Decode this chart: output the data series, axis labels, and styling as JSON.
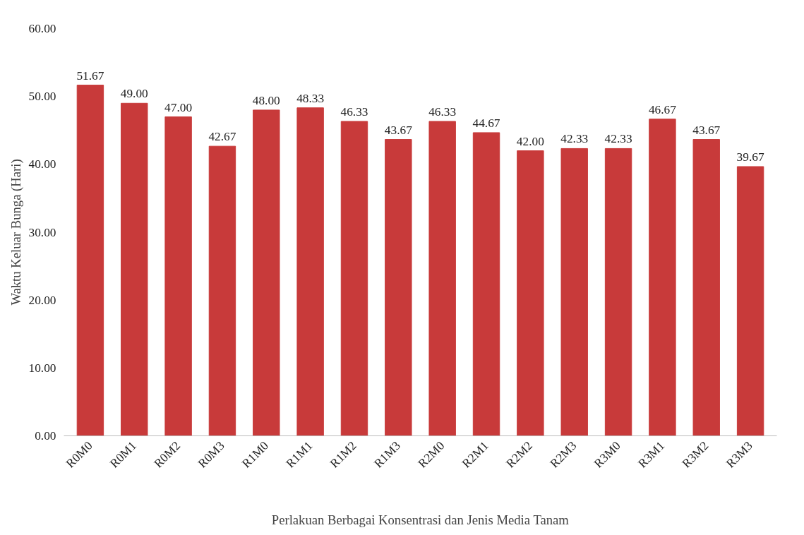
{
  "chart_data": {
    "type": "bar",
    "xlabel": "Perlakuan Berbagai Konsentrasi dan Jenis Media Tanam",
    "ylabel": "Waktu Keluar Bunga (Hari)",
    "categories": [
      "R0M0",
      "R0M1",
      "R0M2",
      "R0M3",
      "R1M0",
      "R1M1",
      "R1M2",
      "R1M3",
      "R2M0",
      "R2M1",
      "R2M2",
      "R2M3",
      "R3M0",
      "R3M1",
      "R3M2",
      "R3M3"
    ],
    "values": [
      51.67,
      49.0,
      47.0,
      42.67,
      48.0,
      48.33,
      46.33,
      43.67,
      46.33,
      44.67,
      42.0,
      42.33,
      42.33,
      46.67,
      43.67,
      39.67
    ],
    "color": "#c83a3a",
    "ylim": [
      0,
      60
    ],
    "yticks": [
      {
        "value": 0,
        "label": "0.00"
      },
      {
        "value": 10,
        "label": "10.00"
      },
      {
        "value": 20,
        "label": "20.00"
      },
      {
        "value": 30,
        "label": "30.00"
      },
      {
        "value": 40,
        "label": "40.00"
      },
      {
        "value": 50,
        "label": "50.00"
      },
      {
        "value": 60,
        "label": "60.00"
      }
    ],
    "value_labels": [
      "51.67",
      "49.00",
      "47.00",
      "42.67",
      "48.00",
      "48.33",
      "46.33",
      "43.67",
      "46.33",
      "44.67",
      "42.00",
      "42.33",
      "42.33",
      "46.67",
      "43.67",
      "39.67"
    ],
    "grid": false
  }
}
